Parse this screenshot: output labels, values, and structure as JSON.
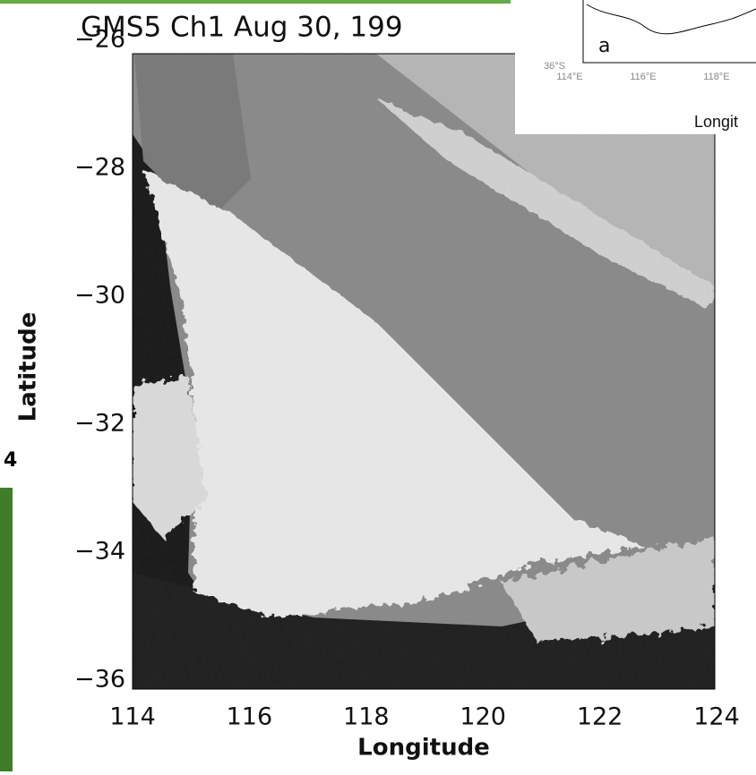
{
  "figure": {
    "title": "GMS5 Ch1 Aug 30, 199",
    "y_axis_label": "Latitude",
    "x_axis_label": "Longitude",
    "y_tick_labels": [
      "−26",
      "−28",
      "−30",
      "−32",
      "−34",
      "−36"
    ],
    "x_tick_labels": [
      "114",
      "116",
      "118",
      "120",
      "122",
      "124"
    ]
  },
  "inset": {
    "panel_label": "a",
    "lat_label": "36°S",
    "lon_labels": [
      "114°E",
      "116°E",
      "118°E"
    ],
    "axis_label": "Longit"
  },
  "side_fragment": "4"
}
